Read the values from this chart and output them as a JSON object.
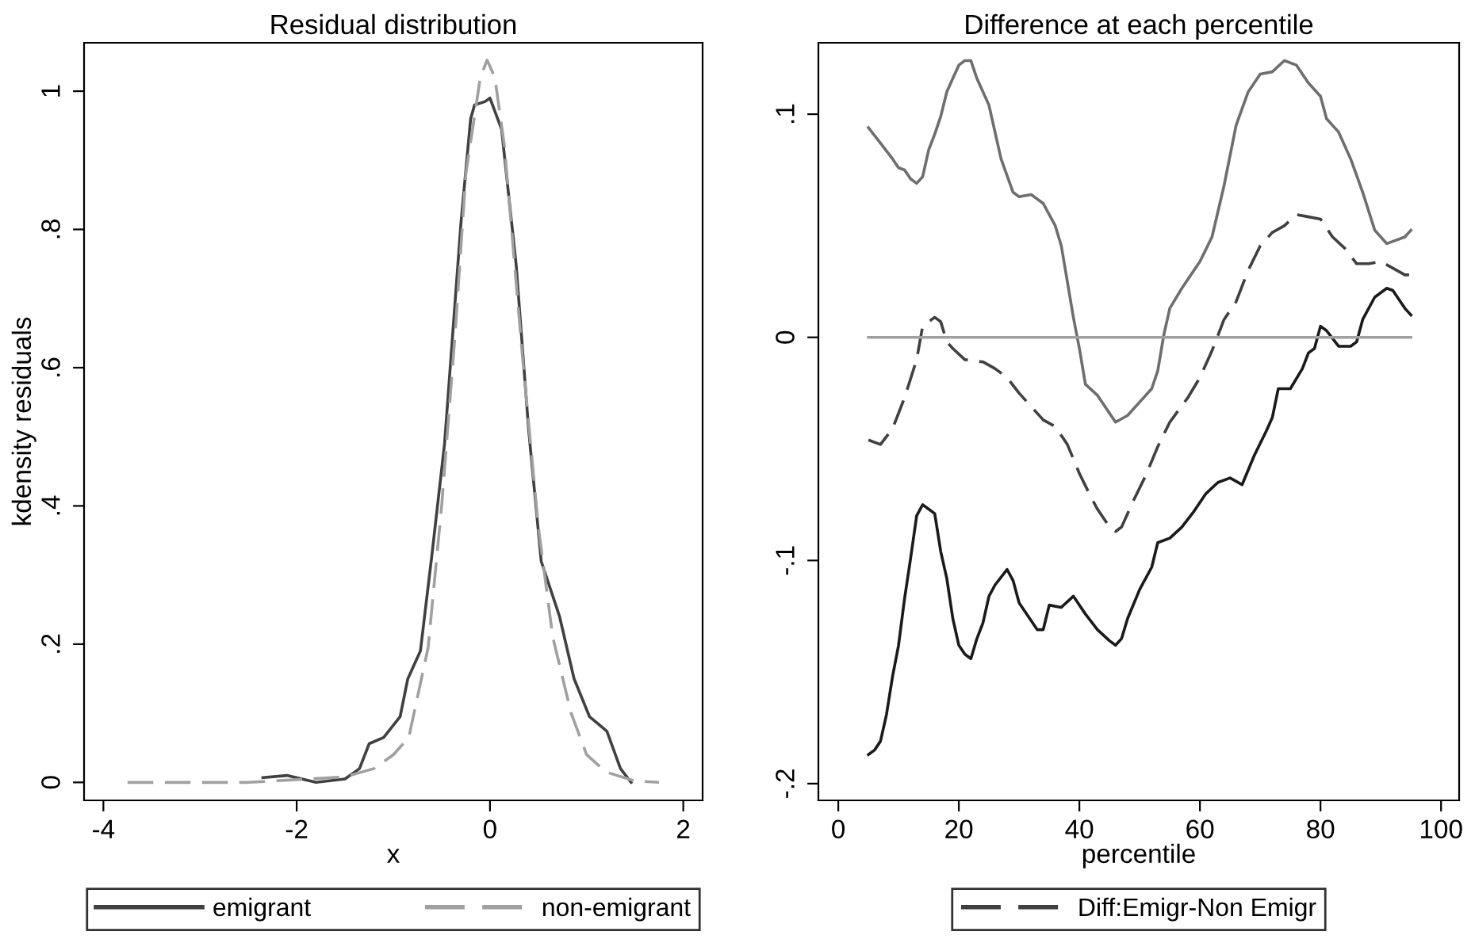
{
  "chart_data": [
    {
      "type": "line",
      "title": "Residual distribution",
      "xlabel": "x",
      "ylabel": "kdensity residuals",
      "xlim": [
        -4.2,
        2.2
      ],
      "xticks": [
        -4,
        -2,
        0,
        2
      ],
      "ylim": [
        -0.026,
        1.07
      ],
      "yticks": [
        0,
        {
          "value": 0.2,
          "label": ".2"
        },
        {
          "value": 0.4,
          "label": ".4"
        },
        {
          "value": 0.6,
          "label": ".6"
        },
        {
          "value": 0.8,
          "label": ".8"
        },
        1
      ],
      "grid": false,
      "legend": "bottom",
      "series": [
        {
          "name": "emigrant",
          "color": "#404040",
          "line_style": "solid",
          "x": [
            -2.35,
            -2.1,
            -1.8,
            -1.5,
            -1.35,
            -1.25,
            -1.1,
            -0.93,
            -0.85,
            -0.72,
            -0.6,
            -0.47,
            -0.3,
            -0.2,
            -0.16,
            -0.05,
            0.0,
            0.12,
            0.27,
            0.4,
            0.53,
            0.72,
            0.87,
            1.03,
            1.21,
            1.35,
            1.46
          ],
          "values": [
            0.007,
            0.01,
            0.0,
            0.005,
            0.02,
            0.056,
            0.065,
            0.095,
            0.15,
            0.19,
            0.33,
            0.49,
            0.81,
            0.96,
            0.98,
            0.985,
            0.99,
            0.945,
            0.75,
            0.51,
            0.32,
            0.24,
            0.15,
            0.095,
            0.074,
            0.02,
            0.0
          ]
        },
        {
          "name": "non-emigrant",
          "color": "#a0a0a0",
          "line_style": "dashed",
          "x": [
            -3.75,
            -2.5,
            -2.0,
            -1.5,
            -1.2,
            -1.0,
            -0.84,
            -0.64,
            -0.5,
            -0.36,
            -0.25,
            -0.1,
            -0.03,
            0.05,
            0.15,
            0.34,
            0.5,
            0.65,
            0.84,
            1.0,
            1.2,
            1.5,
            1.75
          ],
          "values": [
            0.0,
            0.0,
            0.004,
            0.008,
            0.02,
            0.04,
            0.065,
            0.195,
            0.4,
            0.65,
            0.88,
            1.02,
            1.045,
            1.02,
            0.92,
            0.61,
            0.37,
            0.21,
            0.1,
            0.04,
            0.015,
            0.002,
            0.0
          ]
        }
      ]
    },
    {
      "type": "line",
      "title": "Difference at each percentile",
      "xlabel": "percentile",
      "xlim": [
        -3.3,
        103
      ],
      "xticks": [
        0,
        20,
        40,
        60,
        80,
        100
      ],
      "ylim": [
        -0.2075,
        0.132
      ],
      "yticks": [
        {
          "value": -0.2,
          "label": "-.2"
        },
        {
          "value": -0.1,
          "label": "-.1"
        },
        0,
        {
          "value": 0.1,
          "label": ".1"
        }
      ],
      "grid": false,
      "legend": "bottom",
      "series": [
        {
          "color": "#6e6e6e",
          "line_style": "solid",
          "x": [
            5,
            7,
            9,
            10,
            11,
            12,
            13,
            14,
            15,
            16,
            17,
            18,
            19,
            20,
            21,
            22,
            23,
            25,
            27,
            29,
            30,
            32,
            34,
            36,
            37,
            38,
            39,
            40,
            41,
            43,
            45,
            46,
            48,
            50,
            52,
            53,
            54,
            55,
            57,
            60,
            62,
            64,
            66,
            68,
            70,
            72,
            74,
            76,
            78,
            80,
            81,
            83,
            85,
            87,
            89,
            91,
            92,
            94,
            95
          ],
          "values": [
            0.094,
            0.087,
            0.08,
            0.076,
            0.075,
            0.071,
            0.069,
            0.072,
            0.084,
            0.091,
            0.099,
            0.11,
            0.116,
            0.122,
            0.124,
            0.124,
            0.116,
            0.104,
            0.08,
            0.065,
            0.063,
            0.064,
            0.06,
            0.05,
            0.041,
            0.025,
            0.009,
            -0.005,
            -0.021,
            -0.026,
            -0.034,
            -0.038,
            -0.035,
            -0.029,
            -0.023,
            -0.015,
            0.001,
            0.013,
            0.022,
            0.034,
            0.045,
            0.068,
            0.095,
            0.11,
            0.118,
            0.119,
            0.124,
            0.122,
            0.114,
            0.108,
            0.098,
            0.092,
            0.08,
            0.065,
            0.048,
            0.042,
            0.043,
            0.045,
            0.048
          ]
        },
        {
          "name": "Diff:Emigr-Non Emigr",
          "color": "#404040",
          "line_style": "dashed",
          "x": [
            5,
            7,
            9,
            11,
            13,
            14,
            16,
            17,
            18,
            19,
            21,
            24,
            26,
            28,
            30,
            32,
            34,
            36,
            38,
            40,
            42,
            43,
            45,
            46,
            47,
            49,
            51,
            53,
            55,
            58,
            60,
            62,
            64,
            66,
            68,
            70,
            72,
            74,
            76,
            78,
            80,
            82,
            84,
            86,
            88,
            90,
            92,
            94,
            95
          ],
          "values": [
            -0.046,
            -0.048,
            -0.041,
            -0.027,
            -0.01,
            0.005,
            0.009,
            0.007,
            -0.002,
            -0.005,
            -0.01,
            -0.011,
            -0.014,
            -0.018,
            -0.025,
            -0.031,
            -0.037,
            -0.04,
            -0.048,
            -0.061,
            -0.072,
            -0.077,
            -0.085,
            -0.087,
            -0.085,
            -0.073,
            -0.062,
            -0.049,
            -0.038,
            -0.027,
            -0.018,
            -0.006,
            0.008,
            0.016,
            0.03,
            0.041,
            0.047,
            0.05,
            0.055,
            0.054,
            0.053,
            0.045,
            0.04,
            0.033,
            0.033,
            0.034,
            0.031,
            0.028,
            0.028
          ]
        },
        {
          "color": "#1a1a1a",
          "line_style": "solid",
          "x": [
            5,
            6,
            7,
            8,
            9,
            10,
            11,
            12,
            13,
            14,
            15,
            16,
            17,
            18,
            19,
            20,
            21,
            22,
            23,
            24,
            25,
            26,
            28,
            29,
            30,
            31,
            33,
            34,
            35,
            37,
            39,
            41,
            43,
            45,
            46,
            47,
            48,
            50,
            52,
            53,
            55,
            57,
            59,
            61,
            63,
            65,
            67,
            69,
            71,
            72,
            73,
            75,
            77,
            78,
            79,
            80,
            81,
            83,
            85,
            86,
            87,
            89,
            91,
            92,
            93,
            94,
            95
          ],
          "values": [
            -0.187,
            -0.185,
            -0.181,
            -0.169,
            -0.152,
            -0.138,
            -0.117,
            -0.099,
            -0.08,
            -0.075,
            -0.077,
            -0.079,
            -0.096,
            -0.108,
            -0.126,
            -0.138,
            -0.142,
            -0.144,
            -0.135,
            -0.128,
            -0.116,
            -0.111,
            -0.104,
            -0.109,
            -0.119,
            -0.123,
            -0.131,
            -0.131,
            -0.12,
            -0.121,
            -0.116,
            -0.124,
            -0.131,
            -0.136,
            -0.138,
            -0.135,
            -0.126,
            -0.113,
            -0.103,
            -0.092,
            -0.09,
            -0.085,
            -0.078,
            -0.07,
            -0.065,
            -0.063,
            -0.066,
            -0.053,
            -0.042,
            -0.036,
            -0.023,
            -0.023,
            -0.014,
            -0.007,
            -0.005,
            0.005,
            0.003,
            -0.004,
            -0.004,
            -0.002,
            0.008,
            0.018,
            0.022,
            0.021,
            0.017,
            0.013,
            0.01
          ]
        },
        {
          "color": "#a0a0a0",
          "line_style": "solid",
          "x": [
            5,
            95
          ],
          "values": [
            0,
            0
          ]
        }
      ]
    }
  ]
}
